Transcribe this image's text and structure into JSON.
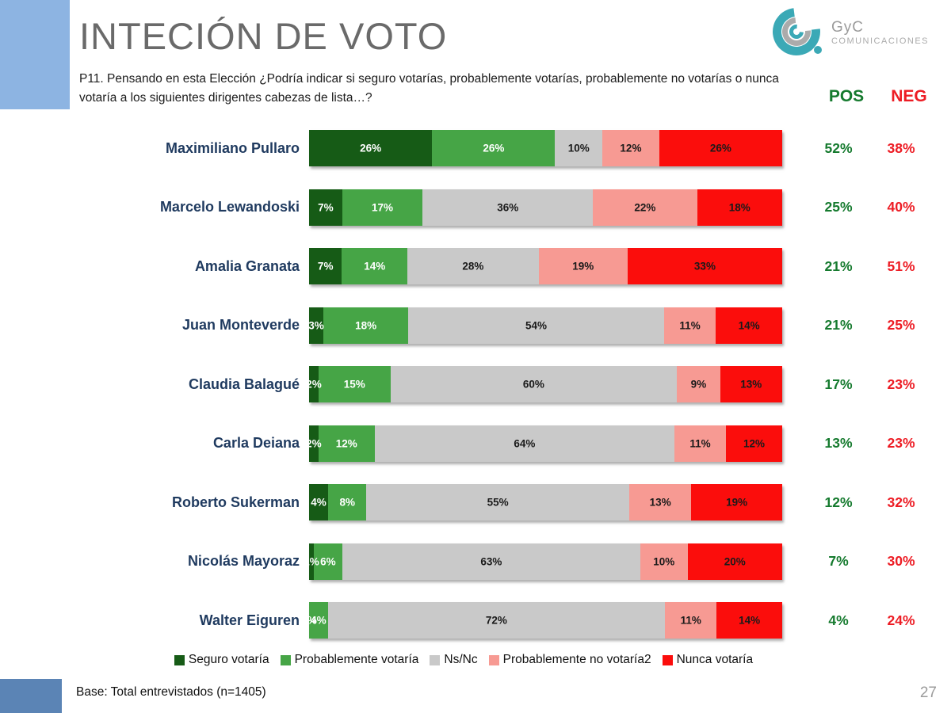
{
  "slide": {
    "title": "INTECIÓN DE VOTO",
    "question": "P11. Pensando en esta Elección ¿Podría indicar si seguro votarías, probablemente votarías, probablemente no votarías o nunca votaría a los siguientes dirigentes cabezas de lista…?",
    "base_note": "Base: Total entrevistados (n=1405)",
    "page_number": "27"
  },
  "logo": {
    "name": "GyC",
    "subtitle": "COMUNICACIONES"
  },
  "columns": {
    "pos_header": "POS",
    "neg_header": "NEG"
  },
  "colors": {
    "accent_blue_light": "#8DB4E2",
    "accent_blue_dark": "#5B84B5",
    "pos_text": "#157A2E",
    "neg_text": "#ED1C24",
    "candidate_text": "#1F3A5F",
    "series": [
      "#165B16",
      "#46A546",
      "#C9C9C9",
      "#F79A93",
      "#FB0D0C"
    ],
    "value_label_colors": [
      "#ffffff",
      "#ffffff",
      "#1a1a1a",
      "#1a1a1a",
      "#1a1a1a"
    ]
  },
  "chart_data": {
    "type": "bar",
    "orientation": "horizontal-stacked",
    "title": "INTECIÓN DE VOTO",
    "legend_position": "bottom",
    "series_labels": [
      "Seguro votaría",
      "Probablemente votaría",
      "Ns/Nc",
      "Probablemente no votaría2",
      "Nunca votaría"
    ],
    "series_colors": [
      "#165B16",
      "#46A546",
      "#C9C9C9",
      "#F79A93",
      "#FB0D0C"
    ],
    "categories": [
      "Maximiliano Pullaro",
      "Marcelo Lewandoski",
      "Amalia Granata",
      "Juan Monteverde",
      "Claudia Balagué",
      "Carla Deiana",
      "Roberto Sukerman",
      "Nicolás Mayoraz",
      "Walter Eiguren"
    ],
    "rows": [
      {
        "name": "Maximiliano Pullaro",
        "values": [
          26,
          26,
          10,
          12,
          26
        ],
        "pos": "52%",
        "neg": "38%"
      },
      {
        "name": "Marcelo Lewandoski",
        "values": [
          7,
          17,
          36,
          22,
          18
        ],
        "pos": "25%",
        "neg": "40%"
      },
      {
        "name": "Amalia Granata",
        "values": [
          7,
          14,
          28,
          19,
          33
        ],
        "pos": "21%",
        "neg": "51%"
      },
      {
        "name": "Juan Monteverde",
        "values": [
          3,
          18,
          54,
          11,
          14
        ],
        "pos": "21%",
        "neg": "25%"
      },
      {
        "name": "Claudia Balagué",
        "values": [
          2,
          15,
          60,
          9,
          13
        ],
        "pos": "17%",
        "neg": "23%"
      },
      {
        "name": "Carla Deiana",
        "values": [
          2,
          12,
          64,
          11,
          12
        ],
        "pos": "13%",
        "neg": "23%"
      },
      {
        "name": "Roberto Sukerman",
        "values": [
          4,
          8,
          55,
          13,
          19
        ],
        "pos": "12%",
        "neg": "32%"
      },
      {
        "name": "Nicolás Mayoraz",
        "values": [
          1,
          6,
          63,
          10,
          20
        ],
        "pos": "7%",
        "neg": "30%"
      },
      {
        "name": "Walter Eiguren",
        "values": [
          0,
          4,
          72,
          11,
          14
        ],
        "pos": "4%",
        "neg": "24%"
      }
    ]
  }
}
